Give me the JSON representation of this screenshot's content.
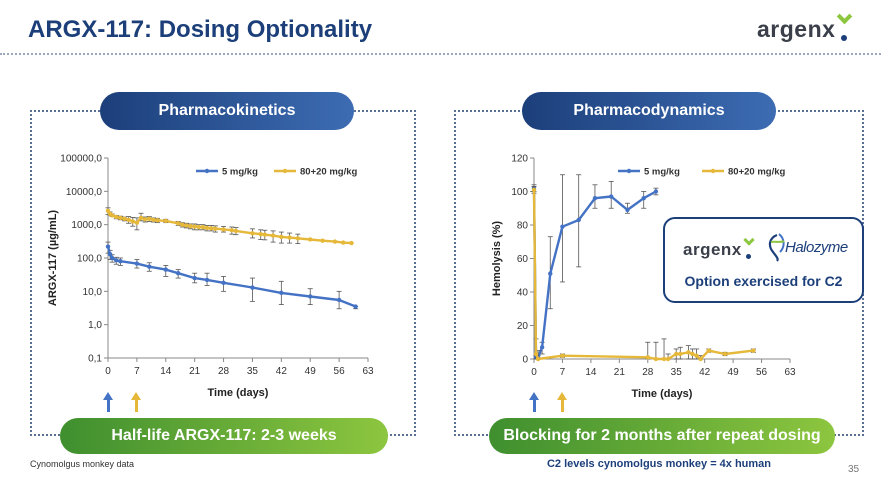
{
  "slide": {
    "title": "ARGX-117: Dosing Optionality",
    "logo": "argenx",
    "footnote": "Cynomolgus monkey data",
    "page_number": "35",
    "colors": {
      "navy": "#1c3f7a",
      "green": "#8dc63f",
      "series_blue": "#4472c4",
      "series_gold": "#e6b83a"
    }
  },
  "left_panel": {
    "header": "Pharmacokinetics",
    "footer": "Half-life ARGX-117: 2-3 weeks",
    "dose_arrows_days": [
      0,
      7
    ]
  },
  "right_panel": {
    "header": "Pharmacodynamics",
    "footer": "Blocking for 2 months after repeat dosing",
    "subnote": "C2 levels cynomolgus monkey = 4x human",
    "dose_arrows_days": [
      0,
      7
    ],
    "callout": {
      "logo_left": "argenx",
      "logo_right": "Halozyme",
      "text": "Option exercised for C2",
      "icon": "halozyme-swirl-icon"
    }
  },
  "chart_data": [
    {
      "type": "line",
      "scale": "log",
      "xlabel": "Time (days)",
      "ylabel": "ARGX-117 (µg/mL)",
      "xlim": [
        0,
        63
      ],
      "ylim": [
        0.1,
        100000
      ],
      "x_ticks": [
        "0",
        "7",
        "14",
        "21",
        "28",
        "35",
        "42",
        "49",
        "56",
        "63"
      ],
      "y_tick_values": [
        0.1,
        1,
        10,
        100,
        1000,
        10000,
        100000
      ],
      "y_ticks": [
        "0,1",
        "1,0",
        "10,0",
        "100,0",
        "1000,0",
        "10000,0",
        "100000,0"
      ],
      "legend_position": "top",
      "error_bars": true,
      "series": [
        {
          "name": "5 mg/kg",
          "color": "#4472c4",
          "x": [
            0,
            0.5,
            1,
            2,
            3,
            7,
            10,
            14,
            17,
            21,
            24,
            28,
            35,
            42,
            49,
            56,
            60
          ],
          "y": [
            220,
            130,
            100,
            85,
            80,
            68,
            55,
            45,
            35,
            25,
            22,
            18,
            13,
            9,
            7,
            5.5,
            3.5
          ],
          "err_low": [
            140,
            90,
            75,
            65,
            60,
            50,
            40,
            28,
            25,
            18,
            15,
            10,
            5,
            4,
            4,
            3,
            3
          ],
          "err_high": [
            300,
            170,
            125,
            105,
            100,
            90,
            72,
            60,
            45,
            35,
            35,
            28,
            25,
            20,
            12,
            10,
            3.5
          ]
        },
        {
          "name": "80+20 mg/kg",
          "color": "#e6b83a",
          "x": [
            0,
            0.5,
            1,
            2,
            3,
            4,
            5,
            6,
            7,
            8,
            9,
            10,
            11,
            12,
            14,
            17,
            18,
            19,
            20,
            21,
            22,
            23,
            24,
            25,
            26,
            28,
            30,
            31,
            35,
            37,
            38,
            40,
            42,
            44,
            46,
            49,
            52,
            55,
            57,
            59
          ],
          "y": [
            2600,
            2100,
            1900,
            1700,
            1600,
            1500,
            1400,
            1250,
            1150,
            1600,
            1450,
            1500,
            1400,
            1350,
            1300,
            1100,
            1000,
            950,
            900,
            880,
            850,
            840,
            800,
            780,
            760,
            720,
            680,
            650,
            550,
            520,
            500,
            470,
            430,
            410,
            390,
            360,
            330,
            310,
            290,
            280
          ],
          "err_low": [
            2000,
            1900,
            1750,
            1500,
            1400,
            1300,
            1100,
            900,
            700,
            1300,
            1200,
            1250,
            1200,
            1150,
            1150,
            950,
            850,
            800,
            750,
            700,
            700,
            700,
            650,
            650,
            600,
            600,
            520,
            500,
            400,
            360,
            350,
            300,
            280,
            280,
            270,
            360,
            330,
            310,
            290,
            280
          ],
          "err_high": [
            3200,
            2400,
            2100,
            1900,
            1800,
            1700,
            1750,
            1650,
            1600,
            2200,
            1700,
            1750,
            1600,
            1550,
            1450,
            1250,
            1150,
            1100,
            1050,
            1050,
            1000,
            1000,
            950,
            950,
            920,
            880,
            850,
            820,
            750,
            700,
            680,
            650,
            600,
            560,
            520,
            360,
            330,
            310,
            290,
            280
          ]
        }
      ]
    },
    {
      "type": "line",
      "xlabel": "Time (days)",
      "ylabel": "Hemolysis (%)",
      "xlim": [
        0,
        63
      ],
      "ylim": [
        0,
        120
      ],
      "x_ticks": [
        "0",
        "7",
        "14",
        "21",
        "28",
        "35",
        "42",
        "49",
        "56",
        "63"
      ],
      "y_tick_values": [
        0,
        20,
        40,
        60,
        80,
        100,
        120
      ],
      "y_ticks": [
        "0",
        "20",
        "40",
        "60",
        "80",
        "100",
        "120"
      ],
      "legend_position": "top",
      "error_bars": true,
      "series": [
        {
          "name": "5 mg/kg",
          "color": "#4472c4",
          "x": [
            0,
            0.5,
            1,
            2,
            4,
            7,
            11,
            15,
            19,
            23,
            27,
            30
          ],
          "y": [
            102,
            1,
            1,
            7,
            51,
            79,
            83,
            96,
            97,
            89,
            96,
            100
          ],
          "err_low": [
            100,
            0,
            0,
            3,
            30,
            46,
            55,
            90,
            90,
            87,
            90,
            98
          ],
          "err_high": [
            104,
            2,
            2,
            10,
            73,
            110,
            110,
            104,
            106,
            93,
            100,
            102
          ]
        },
        {
          "name": "80+20 mg/kg",
          "color": "#e6b83a",
          "x": [
            0,
            0.5,
            1,
            7,
            28,
            30,
            32,
            33,
            35,
            36,
            38,
            39,
            40,
            41,
            43,
            47,
            54
          ],
          "y": [
            101,
            3,
            0,
            2,
            1,
            0,
            0,
            0,
            3,
            3,
            4,
            3,
            2,
            0,
            5,
            3,
            5
          ],
          "err_low": [
            99,
            0,
            0,
            1,
            0,
            0,
            0,
            0,
            0,
            0,
            0,
            0,
            0,
            0,
            4,
            2,
            4
          ],
          "err_high": [
            103,
            12,
            5,
            3,
            10,
            10,
            12,
            3,
            6,
            7,
            8,
            6,
            6,
            2,
            6,
            4,
            6
          ]
        }
      ]
    }
  ]
}
